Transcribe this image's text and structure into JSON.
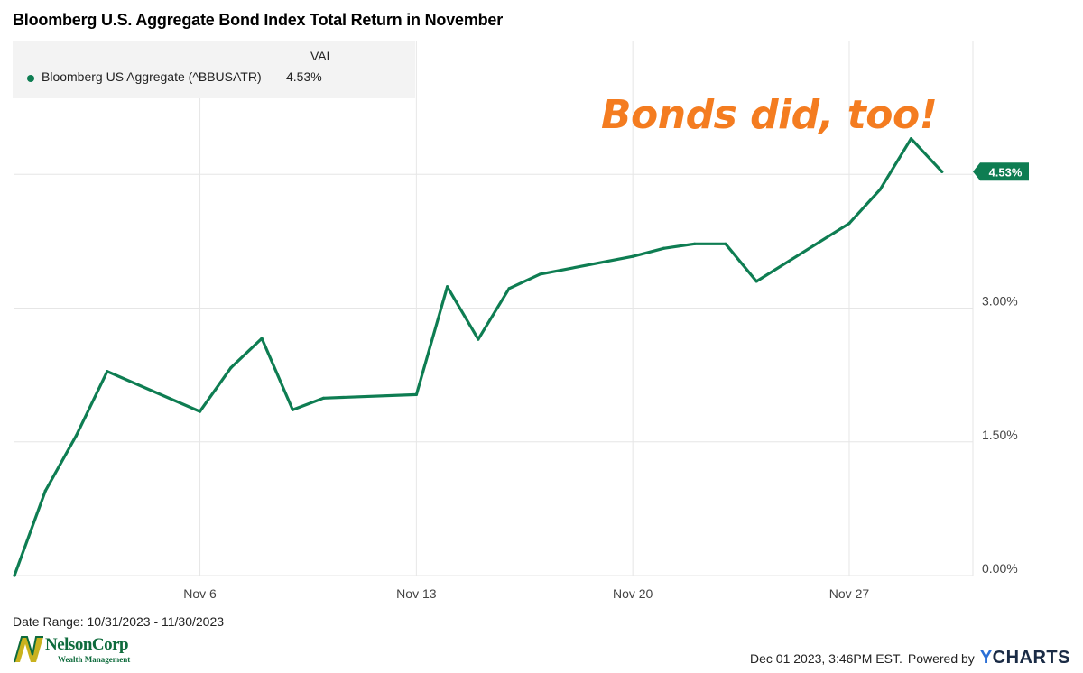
{
  "title": "Bloomberg U.S. Aggregate Bond Index Total Return in November",
  "legend": {
    "header": "VAL",
    "series_name": "Bloomberg US Aggregate (^BBUSATR)",
    "series_value": "4.53%"
  },
  "annotation": "Bonds did, too!",
  "date_range": "Date Range: 10/31/2023 - 11/30/2023",
  "logo": {
    "name": "NelsonCorp",
    "subtitle": "Wealth Management"
  },
  "footer": {
    "timestamp": "Dec 01 2023, 3:46PM EST.",
    "powered_by": "Powered by",
    "brand_y": "Y",
    "brand_rest": "CHARTS"
  },
  "colors": {
    "series": "#0e7d52",
    "annotation": "#f47c20",
    "grid": "#e6e6e6"
  },
  "chart_data": {
    "type": "line",
    "title": "Bloomberg U.S. Aggregate Bond Index Total Return in November",
    "x": [
      "2023-10-31",
      "2023-11-01",
      "2023-11-02",
      "2023-11-03",
      "2023-11-06",
      "2023-11-07",
      "2023-11-08",
      "2023-11-09",
      "2023-11-10",
      "2023-11-13",
      "2023-11-14",
      "2023-11-15",
      "2023-11-16",
      "2023-11-17",
      "2023-11-20",
      "2023-11-21",
      "2023-11-22",
      "2023-11-23",
      "2023-11-24",
      "2023-11-27",
      "2023-11-28",
      "2023-11-29",
      "2023-11-30"
    ],
    "series": [
      {
        "name": "Bloomberg US Aggregate (^BBUSATR)",
        "values": [
          0.0,
          0.95,
          1.57,
          2.29,
          1.84,
          2.33,
          2.66,
          1.86,
          1.99,
          2.03,
          3.24,
          2.65,
          3.22,
          3.38,
          3.58,
          3.67,
          3.72,
          3.72,
          3.3,
          3.95,
          4.33,
          4.9,
          4.53
        ]
      }
    ],
    "xticks": [
      {
        "date": "2023-11-06",
        "label": "Nov 6"
      },
      {
        "date": "2023-11-13",
        "label": "Nov 13"
      },
      {
        "date": "2023-11-20",
        "label": "Nov 20"
      },
      {
        "date": "2023-11-27",
        "label": "Nov 27"
      }
    ],
    "yticks": [
      {
        "value": 0.0,
        "label": "0.00%"
      },
      {
        "value": 1.5,
        "label": "1.50%"
      },
      {
        "value": 3.0,
        "label": "3.00%"
      }
    ],
    "ylim": [
      0,
      6
    ],
    "xlim": [
      "2023-10-31",
      "2023-12-01"
    ],
    "last_value_label": "4.53%",
    "grid": true,
    "legend_position": "top-left"
  }
}
